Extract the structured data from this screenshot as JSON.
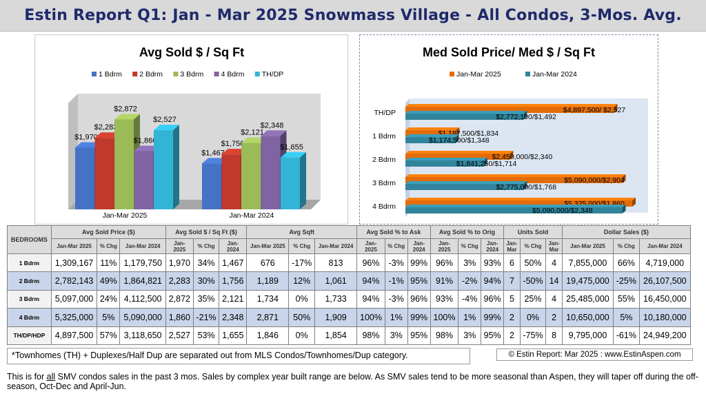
{
  "title": "Estin Report Q1: Jan - Mar 2025 Snowmass Village - All Condos,  3-Mos. Avg.",
  "left_chart_data": {
    "type": "bar",
    "title": "Avg Sold $ / Sq Ft",
    "categories": [
      "Jan-Mar 2025",
      "Jan-Mar 2024"
    ],
    "series": [
      {
        "name": "1 Bdrm",
        "color": "#4472c4",
        "values": [
          1970,
          1467
        ],
        "labels": [
          "$1,970",
          "$1,467"
        ]
      },
      {
        "name": "2 Bdrm",
        "color": "#c0392b",
        "values": [
          2283,
          1756
        ],
        "labels": [
          "$2,283",
          "$1,756"
        ]
      },
      {
        "name": "3 Bdrm",
        "color": "#9bbb59",
        "values": [
          2872,
          2121
        ],
        "labels": [
          "$2,872",
          "$2,121"
        ]
      },
      {
        "name": "4 Bdrm",
        "color": "#8064a2",
        "values": [
          1860,
          2348
        ],
        "labels": [
          "$1,860",
          "$2,348"
        ]
      },
      {
        "name": "TH/DP",
        "color": "#31b4d6",
        "values": [
          2527,
          1655
        ],
        "labels": [
          "$2,527",
          "$1,655"
        ]
      }
    ],
    "ylim": [
      0,
      3300
    ]
  },
  "right_chart_data": {
    "type": "bar-horizontal",
    "title": "Med Sold Price/ Med $ / Sq Ft",
    "categories": [
      "TH/DP",
      "1 Bdrm",
      "2 Bdrm",
      "3 Bdrm",
      "4 Bdrm"
    ],
    "series": [
      {
        "name": "Jan-Mar 2025",
        "color": "#e36c0a",
        "values": [
          4897500,
          1187500,
          2450000,
          5090000,
          5325000
        ],
        "labels": [
          "$4,897,500/ $2,527",
          "$1,187,500/$1,834",
          "$2,450,000/$2,340",
          "$5,090,000/$2,904",
          "$5,325,000/$1,860"
        ]
      },
      {
        "name": "Jan-Mar 2024",
        "color": "#31849b",
        "values": [
          2772100,
          1174500,
          1841250,
          2775000,
          5090000
        ],
        "labels": [
          "$2,772,100/$1,492",
          "$1,174,500/$1,348",
          "$1,841,250/$1,714",
          "$2,775,000/$1,768",
          "$5,090,000/$2,348"
        ]
      }
    ],
    "xlim": [
      0,
      5600000
    ]
  },
  "table": {
    "bedrooms_label": "BEDROOMS",
    "groups": [
      "Avg Sold Price ($)",
      "Avg Sold $ / Sq Ft ($)",
      "Avg Sqft",
      "Avg Sold % to Ask",
      "Avg Sold % to Orig",
      "Units Sold",
      "Dollar Sales ($)"
    ],
    "sub": {
      "jm2025": "Jan-Mar 2025",
      "jm2024": "Jan-Mar 2024",
      "chg": "% Chg",
      "jan": "Jan-",
      "mar": "Mar",
      "y2025": "2025",
      "y2024": "2024"
    },
    "rows": [
      {
        "label": "1 Bdrm",
        "cells": [
          "1,309,167",
          "11%",
          "1,179,750",
          "1,970",
          "34%",
          "1,467",
          "676",
          "-17%",
          "813",
          "96%",
          "-3%",
          "99%",
          "96%",
          "3%",
          "93%",
          "6",
          "50%",
          "4",
          "7,855,000",
          "66%",
          "4,719,000"
        ]
      },
      {
        "label": "2 Bdrm",
        "cells": [
          "2,782,143",
          "49%",
          "1,864,821",
          "2,283",
          "30%",
          "1,756",
          "1,189",
          "12%",
          "1,061",
          "94%",
          "-1%",
          "95%",
          "91%",
          "-2%",
          "94%",
          "7",
          "-50%",
          "14",
          "19,475,000",
          "-25%",
          "26,107,500"
        ]
      },
      {
        "label": "3 Bdrm",
        "cells": [
          "5,097,000",
          "24%",
          "4,112,500",
          "2,872",
          "35%",
          "2,121",
          "1,734",
          "0%",
          "1,733",
          "94%",
          "-3%",
          "96%",
          "93%",
          "-4%",
          "96%",
          "5",
          "25%",
          "4",
          "25,485,000",
          "55%",
          "16,450,000"
        ]
      },
      {
        "label": "4 Bdrm",
        "cells": [
          "5,325,000",
          "5%",
          "5,090,000",
          "1,860",
          "-21%",
          "2,348",
          "2,871",
          "50%",
          "1,909",
          "100%",
          "1%",
          "99%",
          "100%",
          "1%",
          "99%",
          "2",
          "0%",
          "2",
          "10,650,000",
          "5%",
          "10,180,000"
        ]
      },
      {
        "label": "TH/DP/HDP",
        "cells": [
          "4,897,500",
          "57%",
          "3,118,650",
          "2,527",
          "53%",
          "1,655",
          "1,846",
          "0%",
          "1,854",
          "98%",
          "3%",
          "95%",
          "98%",
          "3%",
          "95%",
          "2",
          "-75%",
          "8",
          "9,795,000",
          "-61%",
          "24,949,200"
        ]
      }
    ]
  },
  "footnote": "*Townhomes (TH) + Duplexes/Half Dup are separated out from MLS Condos/Townhomes/Dup category.",
  "copyright": "© Estin Report: Mar 2025 : www.EstinAspen.com",
  "description_pre": "This is for ",
  "description_under": "all",
  "description_post": " SMV condos sales in the past 3 mos. Sales by complex year built range are below. As SMV sales tend to be more seasonal than Aspen, they will taper off during the off-season, Oct-Dec and April-Jun."
}
